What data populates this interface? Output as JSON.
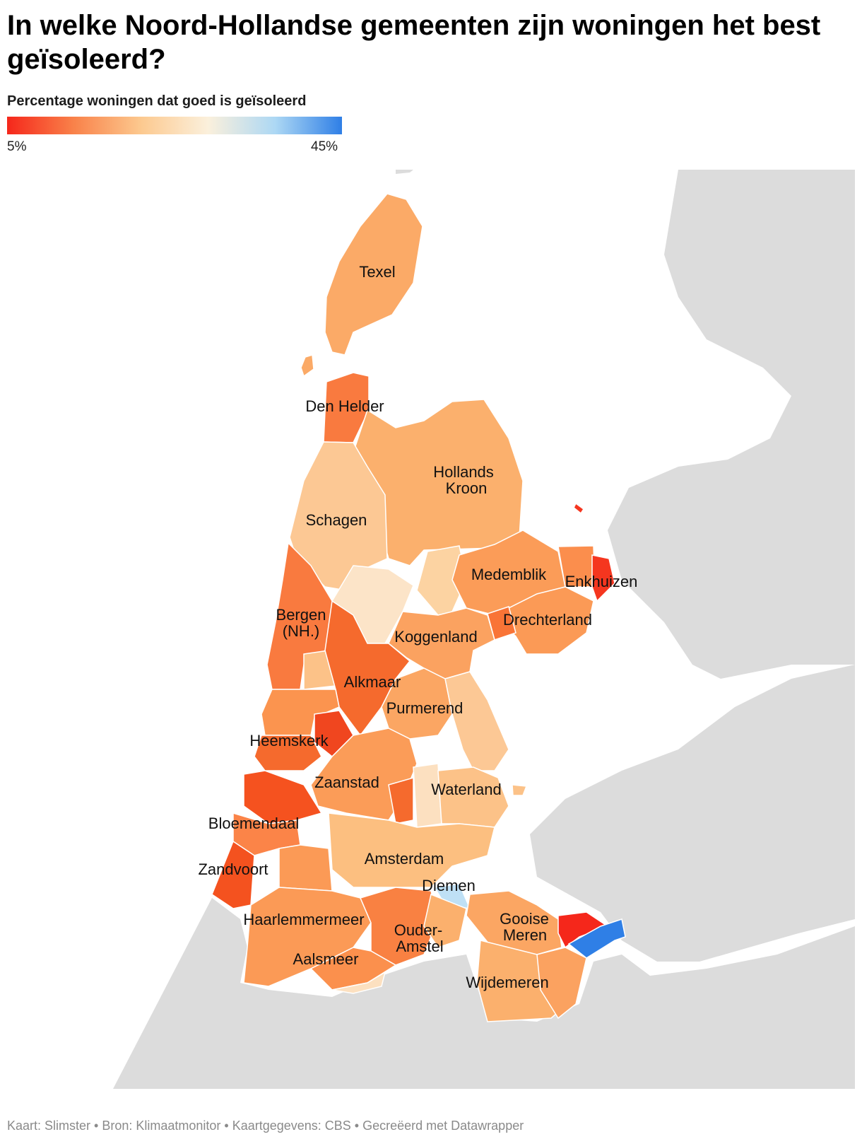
{
  "title": "In welke Noord-Hollandse gemeenten zijn woningen het best geïsoleerd?",
  "legend": {
    "label": "Percentage woningen dat goed is geïsoleerd",
    "min": "5%",
    "max": "45%",
    "colors": [
      "#f5271b",
      "#f9824a",
      "#fcc98f",
      "#fbf0dc",
      "#add8f4",
      "#2f7fe6"
    ]
  },
  "map": {
    "land_color": "#dcdcdc",
    "water_color": "#ffffff",
    "labels": {
      "texel": "Texel",
      "den_helder": "Den Helder",
      "hollands_kroon_1": "Hollands",
      "hollands_kroon_2": "Kroon",
      "schagen": "Schagen",
      "medemblik": "Medemblik",
      "enkhuizen": "Enkhuizen",
      "bergen_1": "Bergen",
      "bergen_2": "(NH.)",
      "drechterland": "Drechterland",
      "koggenland": "Koggenland",
      "alkmaar": "Alkmaar",
      "purmerend": "Purmerend",
      "heemskerk": "Heemskerk",
      "zaanstad": "Zaanstad",
      "waterland": "Waterland",
      "bloemendaal": "Bloemendaal",
      "amsterdam": "Amsterdam",
      "zandvoort": "Zandvoort",
      "diemen": "Diemen",
      "haarlemmermeer": "Haarlemmermeer",
      "gooise_meren_1": "Gooise",
      "gooise_meren_2": "Meren",
      "ouder_amstel_1": "Ouder-",
      "ouder_amstel_2": "Amstel",
      "aalsmeer": "Aalsmeer",
      "wijdemeren": "Wijdemeren"
    }
  },
  "footer": "Kaart: Slimster • Bron: Klimaatmonitor • Kaartgegevens: CBS • Gecreëerd met Datawrapper"
}
